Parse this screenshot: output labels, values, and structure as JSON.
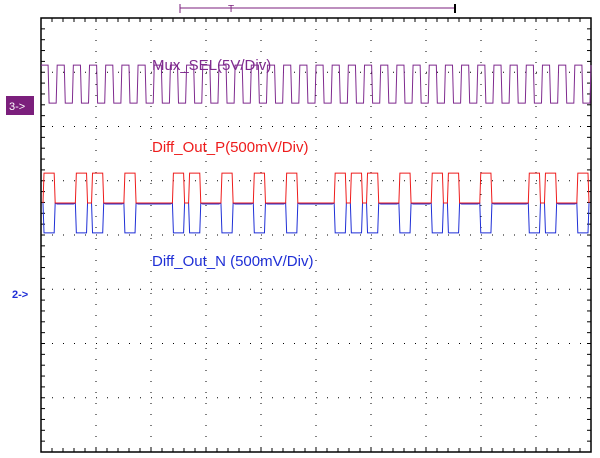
{
  "trigger": {
    "label": "T"
  },
  "channel_markers": {
    "ch3": "3->",
    "ch2": "2->"
  },
  "colors": {
    "mux": "#7f2a8e",
    "diff_p": "#ee1c1c",
    "diff_n": "#1f2fd6",
    "grid": "#000000",
    "marker_bg": "#7b1f7c"
  },
  "chart_data": {
    "type": "line",
    "grid": {
      "divisions_x": 10,
      "divisions_y": 8,
      "style": "dotted"
    },
    "series": [
      {
        "name": "Mux_SEL(5V/Div)",
        "kind": "square_clock",
        "period_cols": 1,
        "high_level_div": 0.55,
        "low_level_div": -0.15,
        "cycles": 34
      },
      {
        "name": "Diff_Out_P(500mV/Div)",
        "kind": "differential_p",
        "baseline_div": 0,
        "high_level_div": 0.55,
        "low_level_div": -0.3,
        "pattern": [
          1,
          0,
          1,
          1,
          0,
          1,
          0,
          0,
          1,
          1,
          0,
          1,
          0,
          1,
          0,
          1,
          0,
          0,
          1,
          1,
          1,
          0,
          1,
          0,
          1,
          1,
          0,
          1,
          0,
          0,
          1,
          1,
          0,
          1
        ]
      },
      {
        "name": "Diff_Out_N (500mV/Div)",
        "kind": "differential_n",
        "baseline_div": 0,
        "high_level_div": 0.3,
        "low_level_div": -0.55,
        "pattern": [
          1,
          0,
          1,
          1,
          0,
          1,
          0,
          0,
          1,
          1,
          0,
          1,
          0,
          1,
          0,
          1,
          0,
          0,
          1,
          1,
          1,
          0,
          1,
          0,
          1,
          1,
          0,
          1,
          0,
          0,
          1,
          1,
          0,
          1
        ]
      }
    ]
  }
}
